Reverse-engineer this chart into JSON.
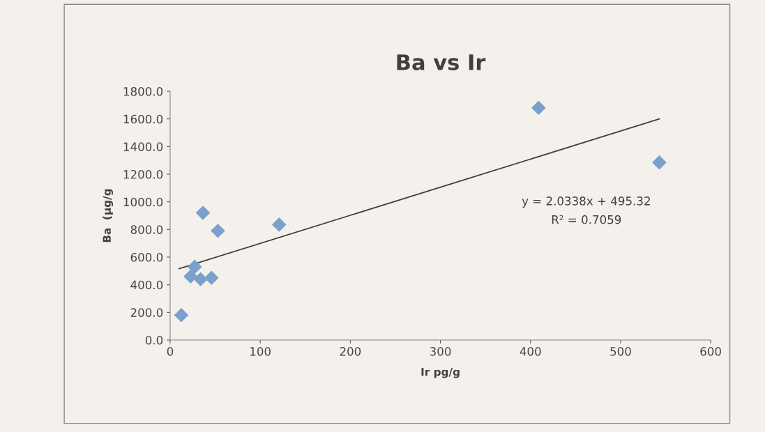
{
  "chart_data": {
    "type": "scatter",
    "title": "Ba vs Ir",
    "xlabel": "Ir pg/g",
    "ylabel": "Ba  (µg/g",
    "series": [
      {
        "color": "#7ba0cb",
        "marker": "diamond",
        "x": [
          12.4,
          22.7,
          27.3,
          33.8,
          45.9,
          36.4,
          53,
          121,
          409,
          543
        ],
        "values": [
          180,
          460,
          530,
          440,
          450,
          920,
          790,
          835,
          1680,
          1285
        ]
      },
      {
        "type": "line",
        "color": "#404040",
        "marker": "none",
        "line_style": "solid",
        "x": [
          10,
          543
        ],
        "values": [
          516,
          1600
        ]
      }
    ],
    "xlim": [
      0,
      600
    ],
    "xticks": [
      0,
      100,
      200,
      300,
      400,
      500,
      600
    ],
    "ylim": [
      0,
      1800
    ],
    "yticks": [
      {
        "value": 0,
        "label": "0.0"
      },
      {
        "value": 200,
        "label": "200.0"
      },
      {
        "value": 400,
        "label": "400.0"
      },
      {
        "value": 600,
        "label": "600.0"
      },
      {
        "value": 800,
        "label": "800.0"
      },
      {
        "value": 1000,
        "label": "1000.0"
      },
      {
        "value": 1200,
        "label": "1200.0"
      },
      {
        "value": 1400,
        "label": "1400.0"
      },
      {
        "value": 1600,
        "label": "1600.0"
      },
      {
        "value": 1800,
        "label": "1800.0"
      }
    ],
    "grid": false,
    "legend": false,
    "annotations": [
      "y = 2.0338x + 495.32",
      "R² = 0.7059"
    ]
  }
}
